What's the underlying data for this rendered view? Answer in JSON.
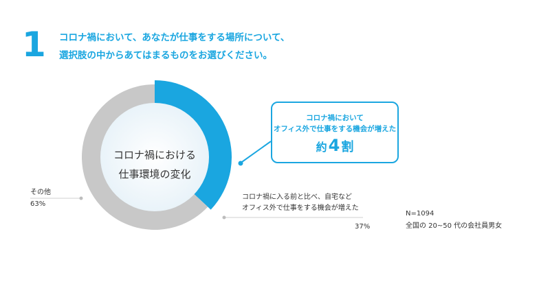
{
  "question": {
    "number": "1",
    "line1": "コロナ禍において、あなたが仕事をする場所について、",
    "line2": "選択肢の中からあてはまるものをお選びください。"
  },
  "chart_data": {
    "type": "pie",
    "title": "コロナ禍における仕事環境の変化",
    "title_line1": "コロナ禍における",
    "title_line2": "仕事環境の変化",
    "slices": [
      {
        "label_line1": "コロナ禍に入る前と比べ、自宅など",
        "label_line2": "オフィス外で仕事をする機会が増えた",
        "value": 37,
        "display": "37%",
        "color": "#1aa6e0"
      },
      {
        "label_line1": "その他",
        "label_line2": "",
        "value": 63,
        "display": "63%",
        "color": "#c8c8c8"
      }
    ]
  },
  "callout": {
    "line1": "コロナ禍において",
    "line2": "オフィス外で仕事をする機会が増えた",
    "prefix": "約",
    "number": "4",
    "suffix": "割"
  },
  "notes": {
    "n": "N=1094",
    "population": "全国の 20~50 代の会社員男女"
  },
  "colors": {
    "accent": "#1aa6e0",
    "other": "#c8c8c8",
    "inner": "#eef6fb"
  }
}
